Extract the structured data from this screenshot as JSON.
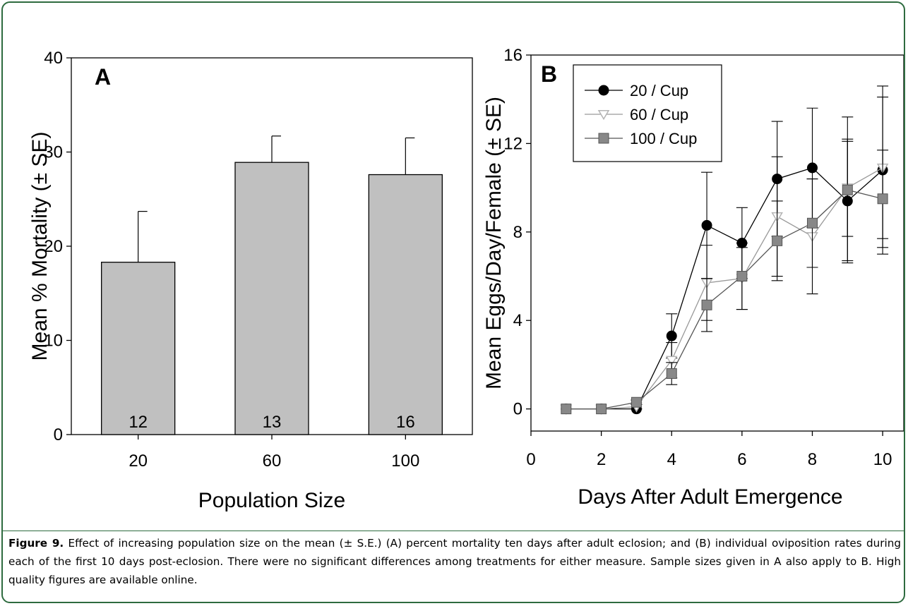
{
  "chart_data": [
    {
      "type": "bar",
      "panel_label": "A",
      "categories": [
        "20",
        "60",
        "100"
      ],
      "values": [
        18.3,
        28.9,
        27.6
      ],
      "error_plus": [
        5.4,
        2.8,
        3.9
      ],
      "sample_sizes": [
        "12",
        "13",
        "16"
      ],
      "xlabel": "Population Size",
      "ylabel": "Mean % Mortality (± SE)",
      "ylim": [
        0,
        40
      ],
      "yticks": [
        0,
        10,
        20,
        30,
        40
      ],
      "bar_color": "#c0c0c0",
      "grid": false
    },
    {
      "type": "line",
      "panel_label": "B",
      "x": [
        1,
        2,
        3,
        4,
        5,
        6,
        7,
        8,
        9,
        10
      ],
      "xlim": [
        0,
        10.6
      ],
      "xticks": [
        0,
        2,
        4,
        6,
        8,
        10
      ],
      "ylim": [
        -1,
        16
      ],
      "yticks": [
        0,
        4,
        8,
        12,
        16
      ],
      "xlabel": "Days After Adult Emergence",
      "ylabel": "Mean Eggs/Day/Female (± SE)",
      "legend_position": "top-left",
      "grid": false,
      "series": [
        {
          "name": "20 / Cup",
          "marker": "circle",
          "color": "#000000",
          "values": [
            0,
            0,
            0,
            3.3,
            8.3,
            7.5,
            10.4,
            10.9,
            9.4,
            10.8
          ],
          "err": [
            0,
            0,
            0,
            1.0,
            2.4,
            1.6,
            2.6,
            2.7,
            2.7,
            3.8
          ]
        },
        {
          "name": "60 / Cup",
          "marker": "triangle-down",
          "color": "#b4b4b4",
          "values": [
            0,
            0,
            0.1,
            2.2,
            5.7,
            5.9,
            8.7,
            7.8,
            10.0,
            10.9
          ],
          "err": [
            0,
            0,
            0.1,
            0.8,
            1.7,
            1.4,
            2.7,
            2.6,
            2.2,
            3.2
          ]
        },
        {
          "name": "100 / Cup",
          "marker": "square",
          "color": "#888888",
          "values": [
            0,
            0,
            0.3,
            1.6,
            4.7,
            6.0,
            7.6,
            8.4,
            9.9,
            9.5
          ],
          "err": [
            0,
            0,
            0.1,
            0.5,
            1.2,
            1.5,
            1.8,
            2.0,
            3.3,
            2.2
          ]
        }
      ]
    }
  ],
  "caption": {
    "label": "Figure 9.",
    "text": " Effect of increasing population size  on the mean (± S.E.) (A) percent mortality ten days after adult eclosion; and (B) individual oviposition rates during each of the first 10 days post-eclosion. There were no significant differences among treatments for either measure. Sample sizes given in A also apply to B. High quality figures are available online."
  }
}
